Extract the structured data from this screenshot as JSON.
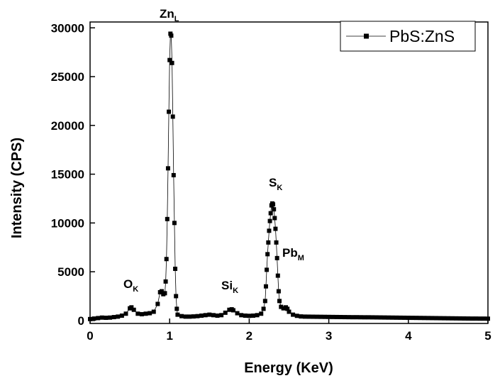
{
  "chart_data": {
    "type": "scatter-line",
    "xlabel": "Energy (KeV)",
    "ylabel": "Intensity (CPS)",
    "x": [
      0,
      0.05,
      0.1,
      0.15,
      0.2,
      0.25,
      0.3,
      0.35,
      0.4,
      0.45,
      0.5,
      0.52,
      0.55,
      0.6,
      0.65,
      0.7,
      0.75,
      0.8,
      0.85,
      0.88,
      0.9,
      0.92,
      0.94,
      0.95,
      0.96,
      0.97,
      0.98,
      0.99,
      1.0,
      1.01,
      1.02,
      1.03,
      1.04,
      1.05,
      1.06,
      1.07,
      1.08,
      1.09,
      1.1,
      1.15,
      1.2,
      1.25,
      1.3,
      1.35,
      1.4,
      1.45,
      1.5,
      1.55,
      1.6,
      1.65,
      1.7,
      1.75,
      1.78,
      1.8,
      1.85,
      1.9,
      1.95,
      2.0,
      2.05,
      2.1,
      2.15,
      2.18,
      2.2,
      2.21,
      2.22,
      2.23,
      2.24,
      2.25,
      2.26,
      2.27,
      2.28,
      2.29,
      2.3,
      2.31,
      2.32,
      2.33,
      2.34,
      2.35,
      2.36,
      2.37,
      2.38,
      2.4,
      2.43,
      2.46,
      2.48,
      2.5,
      2.55,
      2.6,
      2.65,
      2.7,
      2.75,
      2.8,
      2.85,
      2.9,
      2.95,
      3.0,
      3.05,
      3.1,
      3.15,
      3.2,
      3.25,
      3.3,
      3.35,
      3.4,
      3.45,
      3.5,
      3.55,
      3.6,
      3.65,
      3.7,
      3.75,
      3.8,
      3.85,
      3.9,
      3.95,
      4.0,
      4.05,
      4.1,
      4.15,
      4.2,
      4.25,
      4.3,
      4.35,
      4.4,
      4.45,
      4.5,
      4.55,
      4.6,
      4.65,
      4.7,
      4.75,
      4.8,
      4.85,
      4.9,
      4.95,
      5.0
    ],
    "series": [
      {
        "name": "PbS:ZnS",
        "color": "#000000",
        "marker": "square",
        "values": [
          150,
          200,
          250,
          300,
          280,
          300,
          350,
          400,
          500,
          700,
          1250,
          1350,
          1100,
          700,
          650,
          700,
          750,
          900,
          1700,
          2900,
          3000,
          2700,
          2800,
          4000,
          6300,
          10400,
          15600,
          21400,
          26700,
          29400,
          29200,
          26400,
          20900,
          14900,
          10000,
          5300,
          2500,
          1200,
          600,
          450,
          400,
          400,
          420,
          450,
          500,
          550,
          600,
          550,
          500,
          550,
          800,
          1100,
          1150,
          1050,
          750,
          550,
          500,
          480,
          500,
          550,
          700,
          1200,
          2000,
          3500,
          5200,
          6800,
          8000,
          9200,
          10200,
          11000,
          11800,
          12000,
          11900,
          11400,
          10500,
          9400,
          8000,
          6400,
          4600,
          3000,
          2000,
          1400,
          1250,
          1350,
          1200,
          900,
          600,
          480,
          420,
          400,
          395,
          390,
          385,
          380,
          375,
          370,
          365,
          360,
          355,
          350,
          345,
          340,
          340,
          335,
          330,
          330,
          325,
          320,
          315,
          310,
          305,
          300,
          295,
          290,
          285,
          280,
          275,
          270,
          265,
          260,
          255,
          250,
          245,
          240,
          235,
          230,
          225,
          220,
          215,
          210,
          205,
          200,
          200,
          195,
          195,
          190
        ]
      }
    ],
    "xlim": [
      0,
      5
    ],
    "xticks": [
      0,
      1,
      2,
      3,
      4,
      5
    ],
    "ylim": [
      -300,
      30600
    ],
    "yticks": [
      0,
      5000,
      10000,
      15000,
      20000,
      25000,
      30000
    ],
    "legend": "top-right",
    "annotations": [
      {
        "text": "Zn",
        "subscript": "L"
      },
      {
        "text": "O",
        "subscript": "K"
      },
      {
        "text": "Si",
        "subscript": "K"
      },
      {
        "text": "S",
        "subscript": "K"
      },
      {
        "text": "Pb",
        "subscript": "M"
      }
    ]
  }
}
